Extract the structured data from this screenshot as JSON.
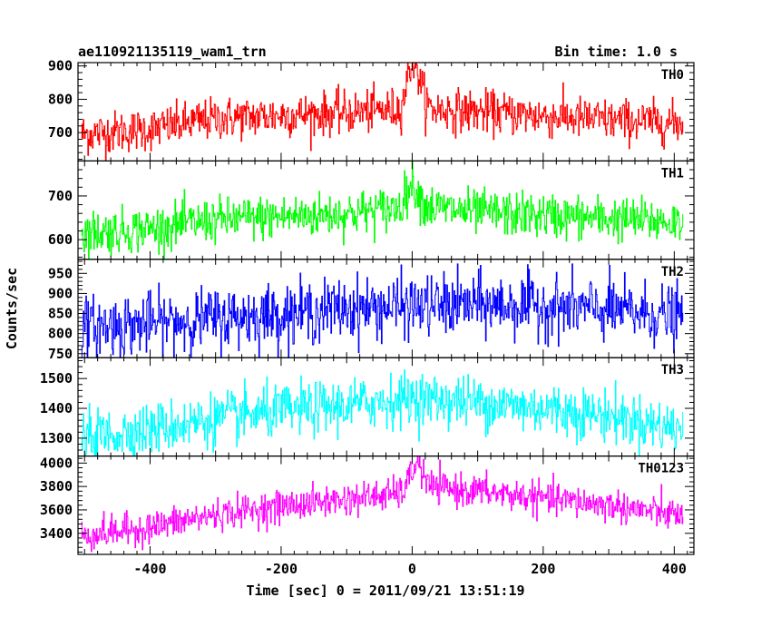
{
  "chart_data": {
    "type": "line",
    "title_left": "ae110921135119_wam1_trn",
    "title_right": "Bin time: 1.0 s",
    "xlabel": "Time [sec] 0 = 2011/09/21 13:51:19",
    "ylabel": "Counts/sec",
    "xlim": [
      -510,
      430
    ],
    "x_ticks": [
      -400,
      -200,
      0,
      200,
      400
    ],
    "x_step": 1,
    "grid": false,
    "panels": [
      {
        "name": "TH0",
        "color": "#ff0000",
        "ylim": [
          615,
          910
        ],
        "y_ticks": [
          700,
          800,
          900
        ],
        "curve": [
          [
            -505,
            695
          ],
          [
            -400,
            710
          ],
          [
            -300,
            742
          ],
          [
            -200,
            752
          ],
          [
            -100,
            760
          ],
          [
            -20,
            770
          ],
          [
            0,
            790
          ],
          [
            10,
            790
          ],
          [
            30,
            770
          ],
          [
            100,
            763
          ],
          [
            200,
            750
          ],
          [
            300,
            738
          ],
          [
            410,
            728
          ]
        ],
        "noise": 35,
        "spikes": [
          [
            5,
            95,
            8
          ],
          [
            -5,
            60,
            6
          ]
        ]
      },
      {
        "name": "TH1",
        "color": "#00ff00",
        "ylim": [
          555,
          780
        ],
        "y_ticks": [
          600,
          700
        ],
        "curve": [
          [
            -505,
            615
          ],
          [
            -400,
            625
          ],
          [
            -300,
            645
          ],
          [
            -200,
            652
          ],
          [
            -100,
            660
          ],
          [
            0,
            675
          ],
          [
            50,
            670
          ],
          [
            100,
            662
          ],
          [
            200,
            655
          ],
          [
            300,
            648
          ],
          [
            410,
            640
          ]
        ],
        "noise": 28,
        "spikes": [
          [
            0,
            50,
            10
          ]
        ]
      },
      {
        "name": "TH2",
        "color": "#0000ff",
        "ylim": [
          740,
          985
        ],
        "y_ticks": [
          750,
          800,
          850,
          900,
          950
        ],
        "curve": [
          [
            -505,
            815
          ],
          [
            -400,
            825
          ],
          [
            -300,
            838
          ],
          [
            -200,
            848
          ],
          [
            -100,
            862
          ],
          [
            0,
            868
          ],
          [
            100,
            872
          ],
          [
            200,
            868
          ],
          [
            300,
            858
          ],
          [
            410,
            842
          ]
        ],
        "noise": 42,
        "spikes": []
      },
      {
        "name": "TH3",
        "color": "#00ffff",
        "ylim": [
          1240,
          1570
        ],
        "y_ticks": [
          1300,
          1400,
          1500
        ],
        "curve": [
          [
            -505,
            1300
          ],
          [
            -400,
            1330
          ],
          [
            -300,
            1365
          ],
          [
            -200,
            1390
          ],
          [
            -100,
            1410
          ],
          [
            0,
            1435
          ],
          [
            100,
            1420
          ],
          [
            200,
            1400
          ],
          [
            300,
            1375
          ],
          [
            410,
            1330
          ]
        ],
        "noise": 48,
        "spikes": []
      },
      {
        "name": "TH0123",
        "color": "#ff00ff",
        "ylim": [
          3220,
          4060
        ],
        "y_ticks": [
          3400,
          3600,
          3800,
          4000
        ],
        "curve": [
          [
            -505,
            3380
          ],
          [
            -400,
            3450
          ],
          [
            -300,
            3560
          ],
          [
            -200,
            3630
          ],
          [
            -100,
            3690
          ],
          [
            -20,
            3740
          ],
          [
            0,
            3810
          ],
          [
            10,
            3870
          ],
          [
            30,
            3790
          ],
          [
            100,
            3760
          ],
          [
            200,
            3700
          ],
          [
            300,
            3640
          ],
          [
            410,
            3550
          ]
        ],
        "noise": 75,
        "spikes": [
          [
            5,
            150,
            8
          ]
        ]
      }
    ]
  }
}
